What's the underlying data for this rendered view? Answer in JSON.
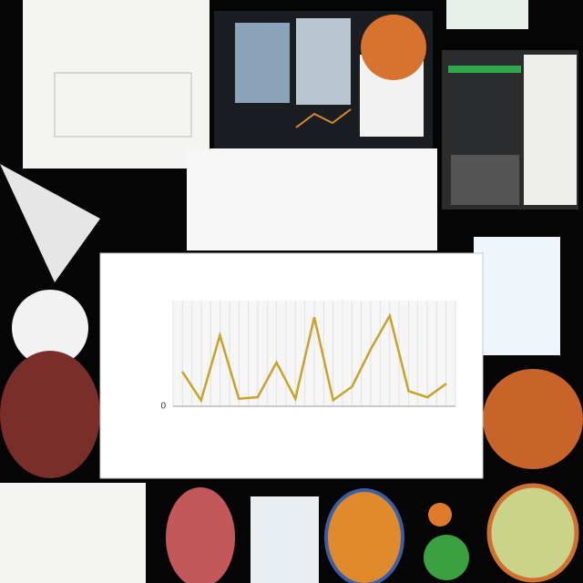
{
  "chart_data": {
    "type": "line",
    "categories": [
      null,
      null,
      null,
      null,
      null,
      null,
      null,
      null,
      null,
      null,
      null,
      null,
      null,
      null,
      null
    ],
    "values": [
      2.3,
      0.4,
      4.7,
      0.5,
      0.6,
      2.9,
      0.5,
      5.9,
      0.4,
      1.3,
      3.8,
      6.0,
      1.0,
      0.6,
      1.5
    ],
    "color": "#c9a227",
    "ylim": [
      0,
      7
    ],
    "yticks": [
      0
    ],
    "grid": true
  }
}
